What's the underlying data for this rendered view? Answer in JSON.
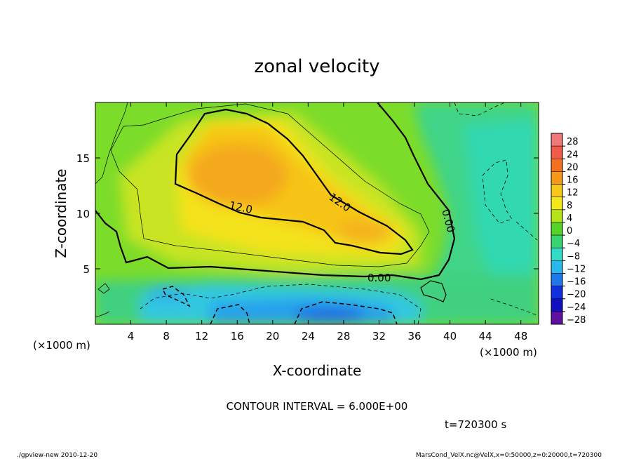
{
  "chart_data": {
    "type": "heatmap",
    "title": "zonal velocity",
    "xlabel": "X-coordinate",
    "ylabel": "Z-coordinate",
    "x_unit_label": "(×1000 m)",
    "y_unit_label": "(×1000 m)",
    "xlim": [
      0,
      50
    ],
    "ylim": [
      0,
      20
    ],
    "x_ticks": [
      4,
      8,
      12,
      16,
      20,
      24,
      28,
      32,
      36,
      40,
      44,
      48
    ],
    "x_tick_labels": [
      "4",
      "8",
      "12",
      "16",
      "20",
      "24",
      "28",
      "32",
      "36",
      "40",
      "44",
      "48"
    ],
    "y_ticks": [
      5,
      10,
      15
    ],
    "y_tick_labels": [
      "5",
      "10",
      "15"
    ],
    "contour_interval_text": "CONTOUR INTERVAL = 6.000E+00",
    "time_label": "t=720300 s",
    "contour_labels": [
      "12.0",
      "12.0",
      "0.00",
      "0.00"
    ],
    "max_region": {
      "x": 16.5,
      "z": 13,
      "value": 17
    },
    "min_region": {
      "x": 26,
      "z": 1,
      "value": -14
    },
    "colorbar": {
      "levels": [
        -28,
        -24,
        -20,
        -16,
        -12,
        -8,
        -4,
        0,
        4,
        8,
        12,
        16,
        20,
        24,
        28
      ],
      "labels": [
        "28",
        "24",
        "20",
        "16",
        "12",
        "8",
        "4",
        "0",
        "−4",
        "−8",
        "−12",
        "−16",
        "−20",
        "−24",
        "−28"
      ],
      "colors": [
        "#f07878",
        "#f25a4a",
        "#f2701e",
        "#f49818",
        "#f8c818",
        "#f4e818",
        "#b4e418",
        "#54d428",
        "#38d470",
        "#30dcc8",
        "#28b8ee",
        "#1e78ea",
        "#1030e0",
        "#1010c0",
        "#6010a0"
      ]
    }
  },
  "footer": {
    "left": "./gpview-new   2010-12-20",
    "right": "MarsCond_VelX.nc@VelX,x=0:50000,z=0:20000,t=720300"
  }
}
